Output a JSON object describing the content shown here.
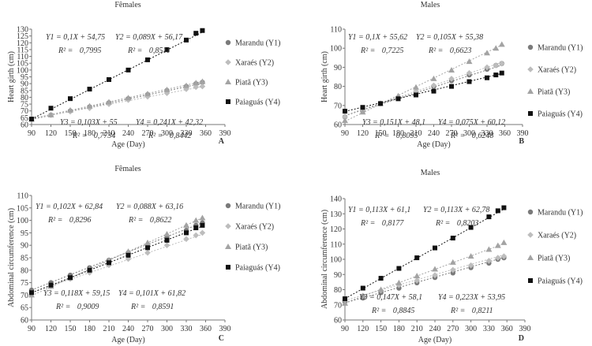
{
  "chart_data": [
    {
      "type": "scatter",
      "panel": "A",
      "title": "Fêmales",
      "xlabel": "Age (Day)",
      "ylabel": "Heart girth (cm)",
      "xlim": [
        90,
        390
      ],
      "ylim": [
        60,
        130
      ],
      "xticks": [
        90,
        120,
        150,
        180,
        210,
        240,
        270,
        300,
        330,
        360,
        390
      ],
      "yticks": [
        60,
        65,
        70,
        75,
        80,
        85,
        90,
        95,
        100,
        105,
        110,
        115,
        120,
        125,
        130
      ],
      "legend_position": "right",
      "series": [
        {
          "name": "Marandu (Y1)",
          "marker": "circle",
          "color": "#7a7a7a",
          "slope": 0.1,
          "intercept": 54.75,
          "x": [
            90,
            120,
            150,
            180,
            210,
            240,
            270,
            300,
            330,
            345,
            355
          ],
          "y": [
            64,
            67,
            70,
            73,
            76,
            79,
            82,
            85,
            88,
            90,
            91
          ]
        },
        {
          "name": "Xaraés (Y2)",
          "marker": "diamond",
          "color": "#bdbdbd",
          "slope": 0.089,
          "intercept": 56.17,
          "x": [
            90,
            120,
            150,
            180,
            210,
            240,
            270,
            300,
            330,
            345,
            355
          ],
          "y": [
            64,
            67,
            69.5,
            72,
            75,
            78,
            80.5,
            83,
            86,
            87.5,
            88
          ]
        },
        {
          "name": "Piatã (Y3)",
          "marker": "triangle",
          "color": "#a3a3a3",
          "slope": 0.103,
          "intercept": 55,
          "x": [
            90,
            120,
            150,
            180,
            210,
            240,
            270,
            300,
            330,
            345,
            355
          ],
          "y": [
            64,
            67,
            70.5,
            73.5,
            76.5,
            79.5,
            82.5,
            85.5,
            88.5,
            90.5,
            91.5
          ]
        },
        {
          "name": "Paiaguás (Y4)",
          "marker": "square",
          "color": "#111111",
          "slope": 0.241,
          "intercept": 42.32,
          "x": [
            90,
            120,
            150,
            180,
            210,
            240,
            270,
            300,
            330,
            345,
            355
          ],
          "y": [
            64,
            72,
            79,
            86,
            93,
            100,
            107.5,
            115,
            122,
            127,
            129
          ]
        }
      ],
      "equations": [
        {
          "eq": "Y1 = 0,1X + 54,75",
          "r2_label": "R² =",
          "r2": "0,7995"
        },
        {
          "eq": "Y2 = 0,089X + 56,17",
          "r2_label": "R² =",
          "r2": "0,8511"
        },
        {
          "eq": "Y3 = 0,103X + 55",
          "r2_label": "R² =",
          "r2": "0,7734"
        },
        {
          "eq": "Y4 = 0,241X + 42,32",
          "r2_label": "R² =",
          "r2": "0,8442"
        }
      ]
    },
    {
      "type": "scatter",
      "panel": "B",
      "title": "Males",
      "xlabel": "Age (Day)",
      "ylabel": "Heart girth (cm)",
      "xlim": [
        90,
        390
      ],
      "ylim": [
        60,
        110
      ],
      "xticks": [
        90,
        120,
        150,
        180,
        210,
        240,
        270,
        300,
        330,
        360,
        390
      ],
      "yticks": [
        60,
        70,
        80,
        90,
        100,
        110
      ],
      "legend_position": "right",
      "series": [
        {
          "name": "Marandu (Y1)",
          "marker": "circle",
          "color": "#7a7a7a",
          "slope": 0.1,
          "intercept": 55.62,
          "x": [
            90,
            120,
            150,
            180,
            210,
            240,
            270,
            300,
            330,
            345,
            355
          ],
          "y": [
            64,
            67,
            71,
            74,
            77,
            80,
            83,
            86,
            89,
            91,
            92
          ]
        },
        {
          "name": "Xaraés (Y2)",
          "marker": "diamond",
          "color": "#bdbdbd",
          "slope": 0.105,
          "intercept": 55.38,
          "x": [
            90,
            120,
            150,
            180,
            210,
            240,
            270,
            300,
            330,
            345,
            355
          ],
          "y": [
            64,
            67.5,
            71,
            74.5,
            77.5,
            80.5,
            84,
            87,
            90,
            91,
            92
          ]
        },
        {
          "name": "Piatã (Y3)",
          "marker": "triangle",
          "color": "#a3a3a3",
          "slope": 0.151,
          "intercept": 48.1,
          "x": [
            90,
            120,
            150,
            180,
            210,
            240,
            270,
            300,
            330,
            345,
            355
          ],
          "y": [
            62,
            66.5,
            71,
            75,
            79.5,
            84,
            88.5,
            93,
            97.5,
            100,
            102
          ]
        },
        {
          "name": "Paiaguás (Y4)",
          "marker": "square",
          "color": "#111111",
          "slope": 0.075,
          "intercept": 60.12,
          "x": [
            90,
            120,
            150,
            180,
            210,
            240,
            270,
            300,
            330,
            345,
            355
          ],
          "y": [
            67,
            69,
            71,
            73.5,
            75.5,
            77.5,
            80,
            82.5,
            84.5,
            86,
            87
          ]
        }
      ],
      "equations": [
        {
          "eq": "Y1 = 0,1X + 55,62",
          "r2_label": "R² =",
          "r2": "0,7225"
        },
        {
          "eq": "Y2 = 0,105X + 55,38",
          "r2_label": "R² =",
          "r2": "0,6623"
        },
        {
          "eq": "Y3 = 0,151X + 48,1",
          "r2_label": "R² =",
          "r2": "0,8095"
        },
        {
          "eq": "Y4 = 0,075X + 60,12",
          "r2_label": "R² =",
          "r2": "0,6248"
        }
      ]
    },
    {
      "type": "scatter",
      "panel": "C",
      "title": "Fêmales",
      "xlabel": "Age (Day)",
      "ylabel": "Abdominal circumference (cm)",
      "xlim": [
        90,
        390
      ],
      "ylim": [
        60,
        110
      ],
      "xticks": [
        90,
        120,
        150,
        180,
        210,
        240,
        270,
        300,
        330,
        360,
        390
      ],
      "yticks": [
        60,
        65,
        70,
        75,
        80,
        85,
        90,
        95,
        100,
        105,
        110
      ],
      "legend_position": "right",
      "series": [
        {
          "name": "Marandu (Y1)",
          "marker": "circle",
          "color": "#7a7a7a",
          "slope": 0.102,
          "intercept": 62.84,
          "x": [
            90,
            120,
            150,
            180,
            210,
            240,
            270,
            300,
            330,
            345,
            355
          ],
          "y": [
            72,
            75,
            78,
            81,
            84,
            87,
            90,
            93,
            96,
            98,
            99
          ]
        },
        {
          "name": "Xaraés (Y2)",
          "marker": "diamond",
          "color": "#bdbdbd",
          "slope": 0.088,
          "intercept": 63.16,
          "x": [
            90,
            120,
            150,
            180,
            210,
            240,
            270,
            300,
            330,
            345,
            355
          ],
          "y": [
            71,
            73.5,
            76.5,
            79,
            82,
            84.5,
            87,
            90,
            92.5,
            94,
            95
          ]
        },
        {
          "name": "Piatã (Y3)",
          "marker": "triangle",
          "color": "#a3a3a3",
          "slope": 0.118,
          "intercept": 59.15,
          "x": [
            90,
            120,
            150,
            180,
            210,
            240,
            270,
            300,
            330,
            345,
            355
          ],
          "y": [
            70,
            73.5,
            77,
            80.5,
            84,
            87.5,
            91,
            94.5,
            98,
            100,
            101
          ]
        },
        {
          "name": "Paiaguás (Y4)",
          "marker": "square",
          "color": "#111111",
          "slope": 0.101,
          "intercept": 61.82,
          "x": [
            90,
            120,
            150,
            180,
            210,
            240,
            270,
            300,
            330,
            345,
            355
          ],
          "y": [
            71,
            74,
            77,
            80,
            83,
            86,
            89,
            92,
            95,
            97,
            98
          ]
        }
      ],
      "equations": [
        {
          "eq": "Y1 = 0,102X + 62,84",
          "r2_label": "R² =",
          "r2": "0,8296"
        },
        {
          "eq": "Y2 = 0,088X + 63,16",
          "r2_label": "R² =",
          "r2": "0,8622"
        },
        {
          "eq": "Y3 = 0,118X + 59,15",
          "r2_label": "R² =",
          "r2": "0,9009"
        },
        {
          "eq": "Y4 = 0,101X + 61,82",
          "r2_label": "R² =",
          "r2": "0,8591"
        }
      ]
    },
    {
      "type": "scatter",
      "panel": "D",
      "title": "Males",
      "xlabel": "Age (Day)",
      "ylabel": "Abdominal circumference (cm)",
      "xlim": [
        90,
        390
      ],
      "ylim": [
        60,
        140
      ],
      "xticks": [
        90,
        120,
        150,
        180,
        210,
        240,
        270,
        300,
        330,
        360,
        390
      ],
      "yticks": [
        60,
        70,
        80,
        90,
        100,
        110,
        120,
        130,
        140
      ],
      "legend_position": "right",
      "series": [
        {
          "name": "Marandu (Y1)",
          "marker": "circle",
          "color": "#7a7a7a",
          "slope": 0.113,
          "intercept": 61.1,
          "x": [
            90,
            120,
            150,
            180,
            210,
            240,
            270,
            300,
            330,
            345,
            355
          ],
          "y": [
            72,
            74.5,
            78,
            81,
            84.5,
            88,
            91,
            94.5,
            97.5,
            100,
            101
          ]
        },
        {
          "name": "Xaraés (Y2)",
          "marker": "diamond",
          "color": "#bdbdbd",
          "slope": 0.113,
          "intercept": 62.78,
          "x": [
            90,
            120,
            150,
            180,
            210,
            240,
            270,
            300,
            330,
            345,
            355
          ],
          "y": [
            73,
            76,
            79.5,
            83,
            86,
            89.5,
            93,
            96,
            99,
            101,
            102
          ]
        },
        {
          "name": "Piatã (Y3)",
          "marker": "triangle",
          "color": "#a3a3a3",
          "slope": 0.147,
          "intercept": 58.1,
          "x": [
            90,
            120,
            150,
            180,
            210,
            240,
            270,
            300,
            330,
            345,
            355
          ],
          "y": [
            71,
            75.5,
            80,
            84.5,
            89,
            93.5,
            98,
            102,
            106.5,
            109,
            111
          ]
        },
        {
          "name": "Paiaguás (Y4)",
          "marker": "square",
          "color": "#111111",
          "slope": 0.223,
          "intercept": 53.95,
          "x": [
            90,
            120,
            150,
            180,
            210,
            240,
            270,
            300,
            330,
            345,
            355
          ],
          "y": [
            74,
            81,
            87.5,
            94,
            101,
            107.5,
            114,
            121,
            128,
            132,
            134
          ]
        }
      ],
      "equations": [
        {
          "eq": "Y1 = 0,113X + 61,1",
          "r2_label": "R² =",
          "r2": "0,8177"
        },
        {
          "eq": "Y2 = 0,113X + 62,78",
          "r2_label": "R² =",
          "r2": "0,8203"
        },
        {
          "eq": "Y3 = 0,147X + 58,1",
          "r2_label": "R² =",
          "r2": "0,8845"
        },
        {
          "eq": "Y4 = 0,223X + 53,95",
          "r2_label": "R² =",
          "r2": "0,8211"
        }
      ]
    }
  ]
}
